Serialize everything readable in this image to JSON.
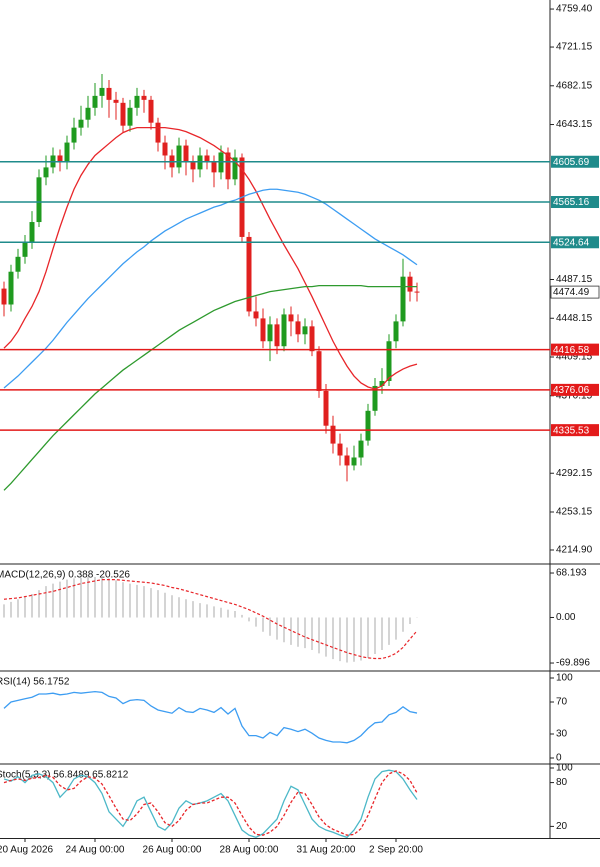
{
  "chart_data": [
    {
      "type": "candlestick",
      "categories": [
        null,
        null,
        null,
        "20 Aug 2026",
        null,
        null,
        null,
        null,
        null,
        null,
        null,
        null,
        null,
        "24 Aug 00:00",
        null,
        null,
        null,
        null,
        null,
        null,
        null,
        null,
        null,
        null,
        "26 Aug 00:00",
        null,
        null,
        null,
        null,
        null,
        null,
        null,
        null,
        null,
        null,
        "28 Aug 00:00",
        null,
        null,
        null,
        null,
        null,
        null,
        null,
        null,
        null,
        null,
        "31 Aug 20:00",
        null,
        null,
        null,
        null,
        null,
        null,
        null,
        null,
        null,
        "2 Sep 20:00",
        null,
        null,
        null
      ],
      "open": [
        4478,
        4462,
        4495,
        4510,
        4525,
        4545,
        4590,
        4600,
        4612,
        4605,
        4625,
        4640,
        4648,
        4660,
        4672,
        4680,
        4668,
        4665,
        4642,
        4660,
        4672,
        4668,
        4645,
        4625,
        4612,
        4600,
        4622,
        4605,
        4598,
        4612,
        4606,
        4595,
        4615,
        4588,
        4610,
        4530,
        4455,
        4448,
        4425,
        4442,
        4420,
        4452,
        4445,
        4432,
        4440,
        4415,
        4375,
        4340,
        4322,
        4310,
        4300,
        4308,
        4325,
        4355,
        4380,
        4385,
        4425,
        4445,
        4490,
        4475
      ],
      "high": [
        4485,
        4502,
        4518,
        4532,
        4556,
        4598,
        4612,
        4620,
        4618,
        4632,
        4650,
        4662,
        4672,
        4685,
        4694,
        4688,
        4676,
        4670,
        4668,
        4680,
        4678,
        4672,
        4650,
        4632,
        4618,
        4630,
        4628,
        4612,
        4620,
        4618,
        4612,
        4622,
        4620,
        4618,
        4614,
        4535,
        4470,
        4458,
        4450,
        4448,
        4458,
        4460,
        4452,
        4448,
        4446,
        4420,
        4382,
        4350,
        4332,
        4318,
        4320,
        4332,
        4362,
        4388,
        4398,
        4432,
        4452,
        4508,
        4495,
        4484
      ],
      "low": [
        4450,
        4455,
        4488,
        4503,
        4518,
        4540,
        4582,
        4594,
        4596,
        4598,
        4618,
        4632,
        4640,
        4652,
        4660,
        4650,
        4648,
        4635,
        4636,
        4652,
        4655,
        4638,
        4616,
        4598,
        4590,
        4594,
        4592,
        4585,
        4590,
        4598,
        4580,
        4588,
        4578,
        4582,
        4525,
        4450,
        4440,
        4418,
        4405,
        4412,
        4415,
        4430,
        4424,
        4422,
        4410,
        4368,
        4332,
        4312,
        4300,
        4284,
        4295,
        4300,
        4320,
        4350,
        4372,
        4380,
        4418,
        4440,
        4465,
        4465
      ],
      "close": [
        4462,
        4495,
        4510,
        4525,
        4545,
        4590,
        4600,
        4612,
        4605,
        4625,
        4640,
        4648,
        4660,
        4672,
        4680,
        4668,
        4665,
        4642,
        4660,
        4672,
        4668,
        4645,
        4625,
        4612,
        4600,
        4622,
        4605,
        4598,
        4612,
        4606,
        4595,
        4615,
        4588,
        4610,
        4530,
        4455,
        4448,
        4425,
        4442,
        4420,
        4452,
        4445,
        4432,
        4440,
        4415,
        4375,
        4340,
        4322,
        4310,
        4300,
        4308,
        4325,
        4355,
        4380,
        4385,
        4425,
        4445,
        4490,
        4475,
        4474.49
      ],
      "up_color": "#1f9a1f",
      "down_color": "#e0201f",
      "series": [
        {
          "color": "#e8262a",
          "values": [
            4418,
            4425,
            4435,
            4448,
            4460,
            4475,
            4495,
            4518,
            4540,
            4560,
            4578,
            4592,
            4603,
            4612,
            4618,
            4624,
            4630,
            4635,
            4638,
            4640,
            4640,
            4640,
            4640,
            4640,
            4639,
            4638,
            4636,
            4633,
            4630,
            4626,
            4622,
            4617,
            4612,
            4606,
            4598,
            4588,
            4576,
            4562,
            4548,
            4535,
            4522,
            4510,
            4498,
            4484,
            4470,
            4455,
            4440,
            4425,
            4412,
            4400,
            4390,
            4383,
            4379,
            4377,
            4380,
            4388,
            4393,
            4397,
            4400,
            4402
          ]
        },
        {
          "color": "#3d9df2",
          "values": [
            4378,
            4384,
            4390,
            4397,
            4404,
            4411,
            4418,
            4426,
            4435,
            4444,
            4452,
            4460,
            4468,
            4475,
            4482,
            4489,
            4496,
            4503,
            4509,
            4515,
            4520,
            4526,
            4531,
            4536,
            4540,
            4544,
            4548,
            4551,
            4554,
            4557,
            4560,
            4562,
            4565,
            4567,
            4570,
            4573,
            4575,
            4577,
            4578,
            4578,
            4577,
            4576,
            4575,
            4573,
            4570,
            4567,
            4563,
            4558,
            4553,
            4548,
            4543,
            4538,
            4533,
            4528,
            4524,
            4520,
            4516,
            4512,
            4507,
            4502
          ]
        },
        {
          "color": "#2e9a2e",
          "values": [
            4275,
            4282,
            4290,
            4298,
            4306,
            4314,
            4322,
            4330,
            4337,
            4344,
            4351,
            4358,
            4365,
            4372,
            4378,
            4384,
            4390,
            4396,
            4401,
            4406,
            4411,
            4416,
            4421,
            4426,
            4431,
            4436,
            4440,
            4444,
            4448,
            4452,
            4456,
            4459,
            4462,
            4465,
            4467,
            4469,
            4471,
            4473,
            4475,
            4476,
            4477,
            4478,
            4479,
            4480,
            4480,
            4481,
            4481,
            4481,
            4481,
            4481,
            4481,
            4481,
            4480,
            4480,
            4480,
            4480,
            4480,
            4480,
            4480,
            4480
          ]
        }
      ],
      "hlines": [
        {
          "value": 4605.69,
          "color": "#1f8b8b"
        },
        {
          "value": 4565.16,
          "color": "#1f8b8b"
        },
        {
          "value": 4524.64,
          "color": "#1f8b8b"
        },
        {
          "value": 4416.58,
          "color": "#e31a1a"
        },
        {
          "value": 4376.06,
          "color": "#e31a1a"
        },
        {
          "value": 4335.53,
          "color": "#e31a1a"
        }
      ],
      "ylim": [
        4201.8,
        4768.5
      ],
      "yticks": [
        {
          "value": 4759.4,
          "label": "4759.40"
        },
        4721.15,
        4682.15,
        4643.15,
        4487.15,
        4448.15,
        4409.15,
        4370.15,
        4292.15,
        4253.15,
        {
          "value": 4214.9,
          "label": "4214.90"
        }
      ]
    },
    {
      "type": "histogram",
      "title": "MACD(12,26,9) 0.388 -20.526",
      "ylim": [
        -80.6,
        80.5
      ],
      "yticks": [
        68.193,
        {
          "value": 0,
          "label": "0.00"
        },
        -69.896
      ],
      "series": [
        {
          "color": "#a8a8a8",
          "values": [
            20,
            24,
            28,
            32,
            36,
            42,
            48,
            52,
            55,
            58,
            60,
            61,
            62,
            62,
            62,
            60,
            57,
            54,
            52,
            50,
            48,
            45,
            42,
            38,
            34,
            31,
            28,
            25,
            22,
            20,
            17,
            15,
            12,
            10,
            4,
            -6,
            -14,
            -22,
            -28,
            -34,
            -38,
            -42,
            -45,
            -47,
            -50,
            -55,
            -60,
            -64,
            -67,
            -69,
            -68,
            -66,
            -62,
            -56,
            -50,
            -42,
            -34,
            -22,
            -10,
            0.388
          ]
        },
        {
          "color": "#e8262a",
          "dash": true,
          "values": [
            28,
            29,
            30,
            32,
            34,
            36,
            38,
            40,
            43,
            46,
            49,
            52,
            54,
            56,
            58,
            58,
            58,
            57,
            56,
            55,
            54,
            53,
            51,
            49,
            46,
            44,
            41,
            38,
            35,
            32,
            29,
            26,
            23,
            20,
            16,
            12,
            7,
            2,
            -4,
            -10,
            -15,
            -20,
            -25,
            -30,
            -34,
            -38,
            -42,
            -46,
            -50,
            -54,
            -57,
            -60,
            -62,
            -63,
            -63,
            -60,
            -55,
            -46,
            -33,
            -20.526
          ]
        }
      ]
    },
    {
      "type": "line",
      "title": "RSI(14) 56.1752",
      "ylim": [
        -6.25,
        107.5
      ],
      "yticks": [
        100,
        70,
        30,
        0
      ],
      "series": [
        {
          "color": "#3d9df2",
          "values": [
            62,
            70,
            72,
            74,
            76,
            80,
            80,
            81,
            79,
            80,
            82,
            81,
            82,
            83,
            82,
            77,
            75,
            68,
            72,
            73,
            72,
            65,
            60,
            58,
            56,
            63,
            58,
            57,
            62,
            60,
            57,
            63,
            55,
            62,
            40,
            28,
            28,
            25,
            32,
            28,
            38,
            36,
            33,
            36,
            31,
            25,
            22,
            20,
            20,
            19,
            22,
            28,
            37,
            44,
            45,
            54,
            57,
            64,
            58,
            56.1752
          ]
        }
      ]
    },
    {
      "type": "line",
      "title": "Stoch(5,3,3) 56.8489 65.8212",
      "ylim": [
        4.1,
        104.1
      ],
      "yticks": [
        100,
        80,
        20
      ],
      "series": [
        {
          "color": "#4cb8c8",
          "values": [
            85,
            82,
            88,
            80,
            90,
            92,
            88,
            80,
            60,
            70,
            85,
            90,
            88,
            80,
            65,
            40,
            30,
            20,
            35,
            55,
            60,
            40,
            20,
            15,
            25,
            45,
            55,
            50,
            52,
            55,
            60,
            65,
            55,
            35,
            15,
            8,
            5,
            10,
            20,
            30,
            55,
            75,
            70,
            50,
            30,
            20,
            15,
            12,
            8,
            5,
            15,
            30,
            60,
            85,
            95,
            97,
            95,
            85,
            70,
            56.8489
          ]
        },
        {
          "color": "#e8262a",
          "dash": true,
          "values": [
            80,
            83,
            85,
            83,
            86,
            87,
            90,
            87,
            76,
            70,
            72,
            82,
            88,
            86,
            78,
            62,
            45,
            30,
            28,
            37,
            50,
            52,
            40,
            25,
            20,
            28,
            42,
            50,
            52,
            52,
            56,
            60,
            60,
            52,
            35,
            19,
            9,
            8,
            12,
            20,
            35,
            53,
            67,
            65,
            50,
            33,
            22,
            16,
            12,
            8,
            9,
            17,
            35,
            58,
            80,
            92,
            96,
            92,
            83,
            65.8212
          ]
        }
      ]
    }
  ]
}
